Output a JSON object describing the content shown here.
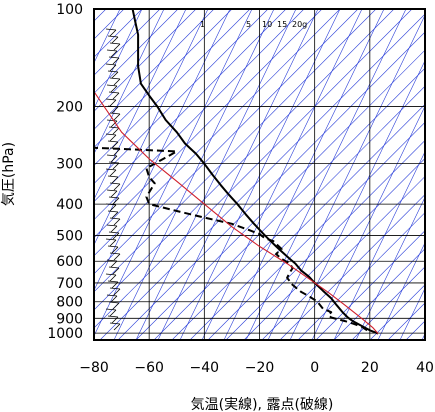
{
  "chart_data": {
    "type": "line",
    "title": "",
    "xlabel": "気温(実線), 露点(破線)",
    "ylabel": "気圧(hPa)",
    "xlim": [
      -80,
      40
    ],
    "ylim_hPa": [
      1050,
      100
    ],
    "y_scale": "log",
    "x_ticks": [
      "−80",
      "−60",
      "−40",
      "−20",
      "0",
      "20",
      "40"
    ],
    "x_tick_values": [
      -80,
      -60,
      -40,
      -20,
      0,
      20,
      40
    ],
    "y_ticks": [
      "100",
      "200",
      "300",
      "400",
      "500",
      "600",
      "700",
      "800",
      "900",
      "1000"
    ],
    "y_tick_values": [
      100,
      200,
      300,
      400,
      500,
      600,
      700,
      800,
      900,
      1000
    ],
    "mixing_ratio_labels": [
      "1",
      "5",
      "10",
      "15",
      "20g"
    ],
    "colors": {
      "temperature": "#000000",
      "dewpoint": "#000000",
      "parcel": "#d0202c",
      "isopleths": "#2b3fd9",
      "grid": "#000000"
    },
    "series": [
      {
        "name": "気温",
        "style": "solid",
        "points": [
          [
            23,
            1003
          ],
          [
            20,
            980
          ],
          [
            17,
            950
          ],
          [
            14,
            920
          ],
          [
            12,
            895
          ],
          [
            10,
            860
          ],
          [
            8,
            820
          ],
          [
            6,
            780
          ],
          [
            3,
            740
          ],
          [
            0,
            700
          ],
          [
            -2,
            670
          ],
          [
            -5,
            640
          ],
          [
            -7,
            610
          ],
          [
            -9,
            590
          ],
          [
            -12,
            560
          ],
          [
            -14,
            540
          ],
          [
            -17,
            510
          ],
          [
            -19,
            490
          ],
          [
            -22,
            460
          ],
          [
            -25,
            430
          ],
          [
            -28,
            400
          ],
          [
            -31,
            375
          ],
          [
            -34,
            350
          ],
          [
            -37,
            325
          ],
          [
            -40,
            300
          ],
          [
            -43,
            280
          ],
          [
            -47,
            260
          ],
          [
            -50,
            240
          ],
          [
            -54,
            220
          ],
          [
            -57,
            200
          ],
          [
            -60,
            185
          ],
          [
            -63,
            170
          ],
          [
            -64,
            150
          ],
          [
            -64,
            135
          ],
          [
            -64,
            120
          ],
          [
            -65,
            110
          ],
          [
            -66,
            100
          ]
        ]
      },
      {
        "name": "露点",
        "style": "dashed",
        "points": [
          [
            19,
            980
          ],
          [
            17,
            955
          ],
          [
            14,
            935
          ],
          [
            11,
            918
          ],
          [
            6,
            895
          ],
          [
            5,
            880
          ],
          [
            6,
            862
          ],
          [
            3,
            840
          ],
          [
            1,
            800
          ],
          [
            -2,
            770
          ],
          [
            -5,
            745
          ],
          [
            -8,
            710
          ],
          [
            -10,
            675
          ],
          [
            -9,
            650
          ],
          [
            -8,
            630
          ],
          [
            -9,
            610
          ],
          [
            -12,
            590
          ],
          [
            -14,
            570
          ],
          [
            -12,
            550
          ],
          [
            -15,
            520
          ],
          [
            -18,
            510
          ],
          [
            -20,
            495
          ],
          [
            -24,
            480
          ],
          [
            -30,
            460
          ],
          [
            -40,
            440
          ],
          [
            -50,
            420
          ],
          [
            -60,
            400
          ],
          [
            -61,
            380
          ],
          [
            -58,
            345
          ],
          [
            -60,
            330
          ],
          [
            -61,
            310
          ],
          [
            -50,
            275
          ],
          [
            -71,
            270
          ],
          [
            -80,
            268
          ]
        ]
      },
      {
        "name": "parcel",
        "style": "solid",
        "points": [
          [
            23,
            1003
          ],
          [
            21,
            960
          ],
          [
            17,
            900
          ],
          [
            11,
            820
          ],
          [
            5,
            750
          ],
          [
            -2,
            680
          ],
          [
            -10,
            610
          ],
          [
            -20,
            540
          ],
          [
            -30,
            470
          ],
          [
            -40,
            400
          ],
          [
            -50,
            340
          ],
          [
            -60,
            290
          ],
          [
            -70,
            240
          ],
          [
            -80,
            180
          ]
        ]
      }
    ]
  }
}
